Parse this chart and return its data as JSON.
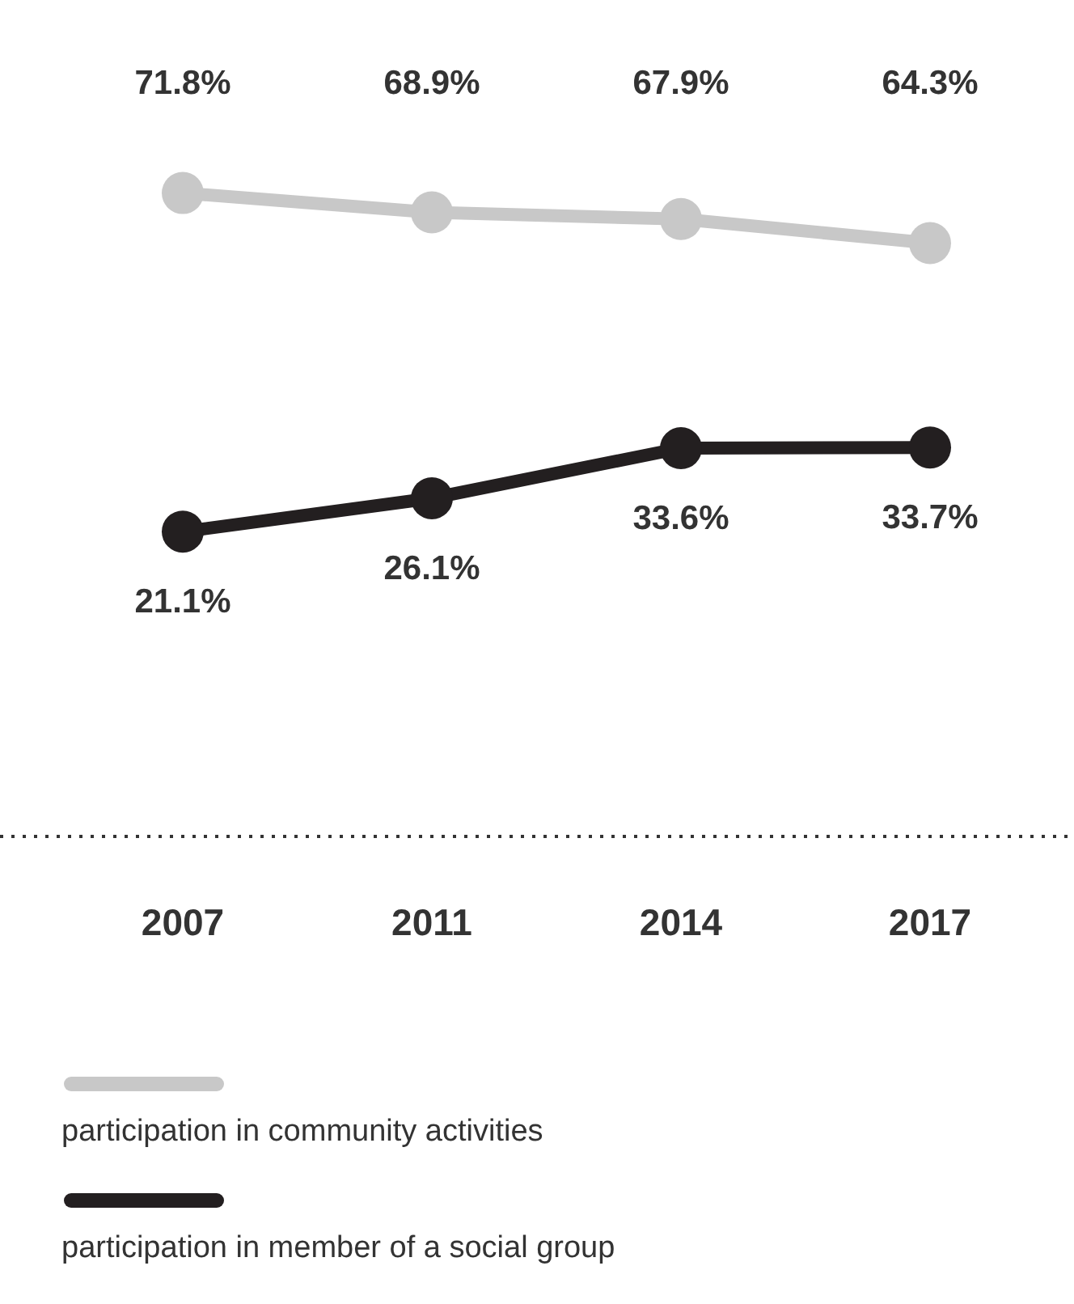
{
  "chart_data": {
    "type": "line",
    "categories": [
      "2007",
      "2011",
      "2014",
      "2017"
    ],
    "series": [
      {
        "name": "participation in community activities",
        "color": "#c8c8c8",
        "values": [
          71.8,
          68.9,
          67.9,
          64.3
        ],
        "value_labels": [
          "71.8%",
          "68.9%",
          "67.9%",
          "64.3%"
        ]
      },
      {
        "name": "participation in member of a social group",
        "color": "#231f20",
        "values": [
          21.1,
          26.1,
          33.6,
          33.7
        ],
        "value_labels": [
          "21.1%",
          "26.1%",
          "33.6%",
          "33.7%"
        ]
      }
    ],
    "tick_labels": "x",
    "grid": false,
    "legend": "bottom",
    "marker": "circle",
    "line_style": "solid"
  }
}
